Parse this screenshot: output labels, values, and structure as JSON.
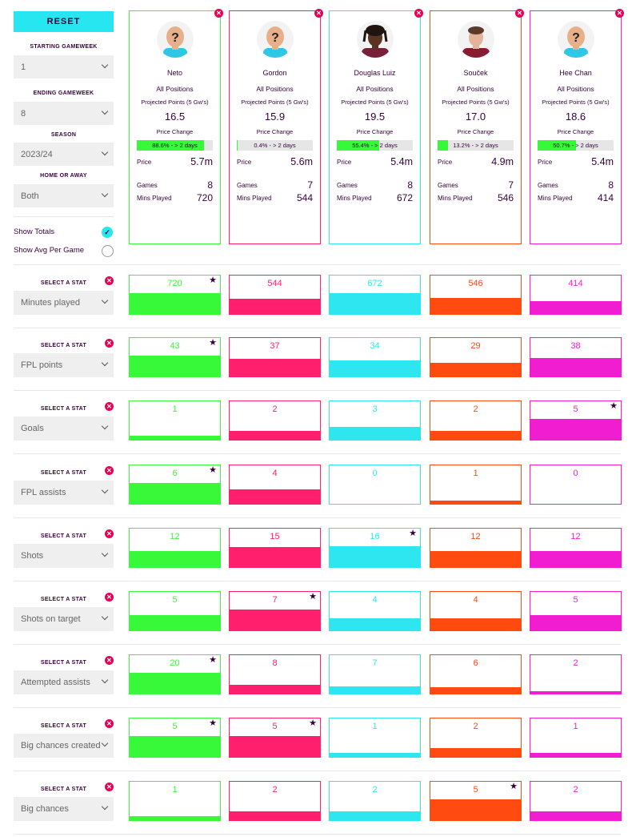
{
  "sidebar": {
    "reset_label": "RESET",
    "starting_gameweek_label": "STARTING GAMEWEEK",
    "starting_gameweek_value": "1",
    "ending_gameweek_label": "ENDING GAMEWEEK",
    "ending_gameweek_value": "8",
    "season_label": "SEASON",
    "season_value": "2023/24",
    "home_away_label": "HOME OR AWAY",
    "home_away_value": "Both",
    "show_totals_label": "Show Totals",
    "show_totals_checked": true,
    "show_avg_label": "Show Avg Per Game",
    "show_avg_checked": false
  },
  "labels": {
    "projected": "Projected Points (5 Gw's)",
    "price_change": "Price Change",
    "price": "Price",
    "games": "Games",
    "mins_played": "Mins Played",
    "select_stat": "SELECT A STAT"
  },
  "players": [
    {
      "name": "Neto",
      "position": "All Positions",
      "projected": "16.5",
      "price_change_text": "88.6% - > 2 days",
      "price_change_pct": 88.6,
      "price": "5.7m",
      "games": "8",
      "mins": "720",
      "color": "#38f83a",
      "avatar": "placeholder"
    },
    {
      "name": "Gordon",
      "position": "All Positions",
      "projected": "15.9",
      "price_change_text": "0.4% - > 2 days",
      "price_change_pct": 0.4,
      "price": "5.6m",
      "games": "7",
      "mins": "544",
      "color": "#ff1f6d",
      "avatar": "placeholder"
    },
    {
      "name": "Douglas Luiz",
      "position": "All Positions",
      "projected": "19.5",
      "price_change_text": "55.4% - > 2 days",
      "price_change_pct": 55.4,
      "price": "5.4m",
      "games": "8",
      "mins": "672",
      "color": "#2ee6f0",
      "avatar": "photo-dark-hair"
    },
    {
      "name": "Souček",
      "position": "All Positions",
      "projected": "17.0",
      "price_change_text": "13.2% - > 2 days",
      "price_change_pct": 13.2,
      "price": "4.9m",
      "games": "7",
      "mins": "546",
      "color": "#ff4a10",
      "avatar": "photo-short-hair"
    },
    {
      "name": "Hee Chan",
      "position": "All Positions",
      "projected": "18.6",
      "price_change_text": "50.7% - > 2 days",
      "price_change_pct": 50.7,
      "price": "5.4m",
      "games": "8",
      "mins": "414",
      "color": "#f01ed0",
      "avatar": "placeholder"
    }
  ],
  "stats": [
    {
      "name": "Minutes played",
      "values": [
        720,
        544,
        672,
        546,
        414
      ],
      "fills": [
        0.55,
        0.4,
        0.55,
        0.42,
        0.33
      ],
      "best": 0
    },
    {
      "name": "FPL points",
      "values": [
        43,
        37,
        34,
        29,
        38
      ],
      "fills": [
        0.55,
        0.45,
        0.42,
        0.36,
        0.47
      ],
      "best": 0
    },
    {
      "name": "Goals",
      "values": [
        1,
        2,
        3,
        2,
        5
      ],
      "fills": [
        0.11,
        0.22,
        0.33,
        0.22,
        0.55
      ],
      "best": 4
    },
    {
      "name": "FPL assists",
      "values": [
        6,
        4,
        0,
        1,
        0
      ],
      "fills": [
        0.55,
        0.37,
        0,
        0.09,
        0
      ],
      "best": 0
    },
    {
      "name": "Shots",
      "values": [
        12,
        15,
        16,
        12,
        12
      ],
      "fills": [
        0.41,
        0.52,
        0.55,
        0.41,
        0.41
      ],
      "best": 2
    },
    {
      "name": "Shots on target",
      "values": [
        5,
        7,
        4,
        4,
        5
      ],
      "fills": [
        0.39,
        0.55,
        0.31,
        0.31,
        0.39
      ],
      "best": 1
    },
    {
      "name": "Attempted assists",
      "values": [
        20,
        8,
        7,
        6,
        2
      ],
      "fills": [
        0.55,
        0.22,
        0.19,
        0.16,
        0.06
      ],
      "best": 0
    },
    {
      "name": "Big chances created",
      "values": [
        5,
        5,
        1,
        2,
        1
      ],
      "fills": [
        0.55,
        0.55,
        0.11,
        0.22,
        0.11
      ],
      "best": [
        0,
        1
      ]
    },
    {
      "name": "Big chances",
      "values": [
        1,
        2,
        2,
        5,
        2
      ],
      "fills": [
        0.11,
        0.22,
        0.22,
        0.55,
        0.22
      ],
      "best": 3
    }
  ],
  "icons": {
    "remove": "remove-x-icon",
    "star": "best-star-icon",
    "chevron": "chevron-down-icon",
    "check": "checkmark-icon"
  }
}
